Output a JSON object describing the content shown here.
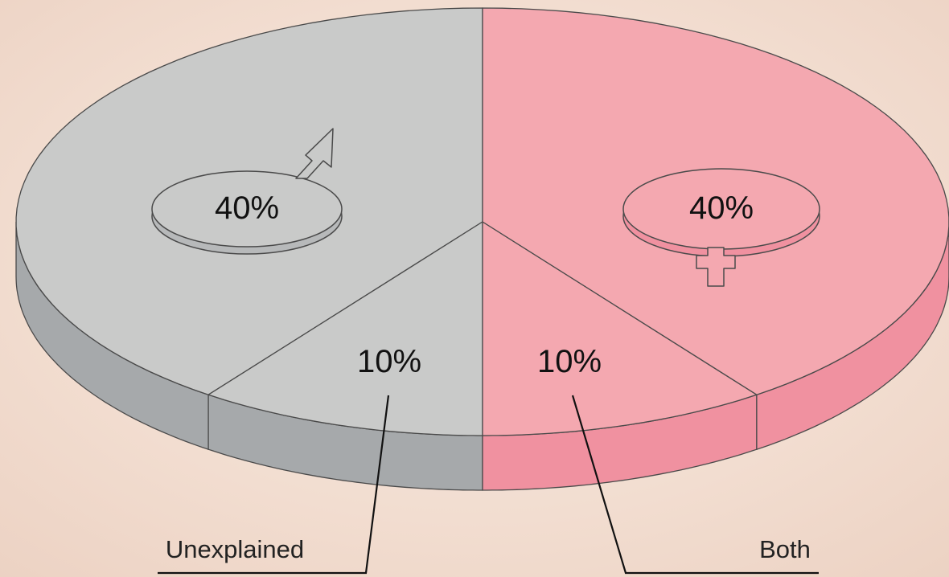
{
  "chart_data": {
    "type": "pie",
    "title": "",
    "style": "3d-exploded-disc",
    "slices": [
      {
        "label": "",
        "value": 40,
        "display": "40%",
        "symbol": "male-symbol",
        "color": "#c9cac9",
        "side_color": "#a6a9ab"
      },
      {
        "label": "Unexplained",
        "value": 10,
        "display": "10%",
        "symbol": "",
        "color": "#c9cac9",
        "side_color": "#a6a9ab"
      },
      {
        "label": "Both",
        "value": 10,
        "display": "10%",
        "symbol": "",
        "color": "#f4a8b0",
        "side_color": "#f091a0"
      },
      {
        "label": "",
        "value": 40,
        "display": "40%",
        "symbol": "female-symbol",
        "color": "#f4a8b0",
        "side_color": "#f091a0"
      }
    ]
  },
  "colors": {
    "background": "#f3e3d6",
    "outline": "#4a4a4a"
  }
}
